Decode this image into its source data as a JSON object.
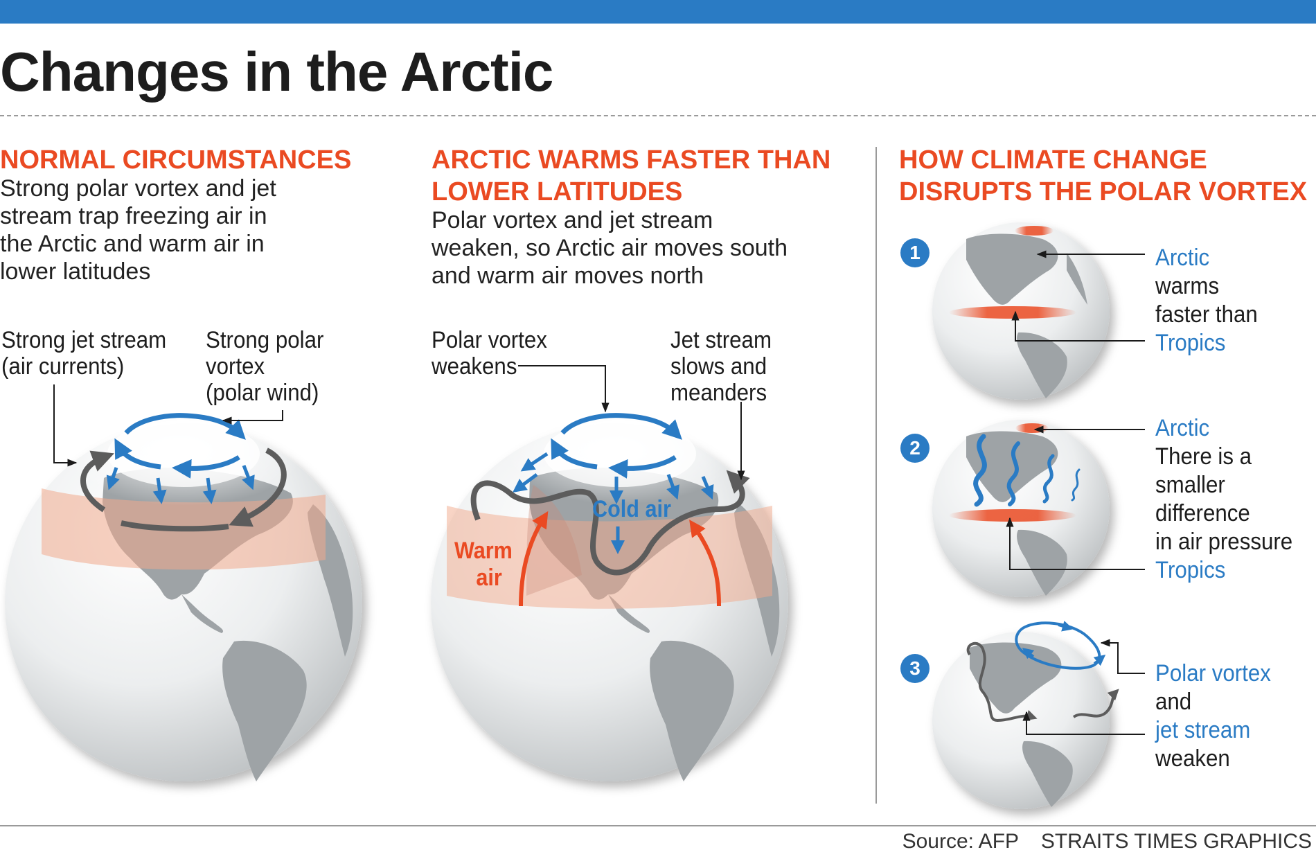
{
  "title": "Changes in the Arctic",
  "panel1": {
    "heading": "NORMAL CIRCUMSTANCES",
    "body": [
      "Strong polar vortex and jet",
      "stream trap freezing air in",
      "the Arctic and warm air in",
      "lower latitudes"
    ],
    "label_jet": [
      "Strong jet stream",
      "(air currents)"
    ],
    "label_vortex": [
      "Strong polar",
      "vortex",
      "(polar wind)"
    ]
  },
  "panel2": {
    "heading": [
      "ARCTIC WARMS FASTER THAN",
      "LOWER LATITUDES"
    ],
    "body": [
      "Polar vortex and jet stream",
      "weaken, so Arctic air moves south",
      "and warm air moves north"
    ],
    "label_vortex": [
      "Polar vortex",
      "weakens"
    ],
    "label_jet": [
      "Jet stream",
      "slows and",
      "meanders"
    ],
    "cold_air": "Cold air",
    "warm_air": [
      "Warm",
      "air"
    ]
  },
  "panel3": {
    "heading": [
      "HOW CLIMATE CHANGE",
      "DISRUPTS THE POLAR VORTEX"
    ],
    "step1": {
      "number": "1",
      "lines": [
        "Arctic",
        "warms",
        "faster than",
        "Tropics"
      ]
    },
    "step2": {
      "number": "2",
      "lines": [
        "Arctic",
        "There is a",
        "smaller",
        "difference",
        "in air pressure",
        "Tropics"
      ]
    },
    "step3": {
      "number": "3",
      "lines": [
        "Polar vortex",
        "and",
        "jet stream",
        "weaken"
      ]
    }
  },
  "footer": {
    "source": "Source: AFP",
    "credit": "STRAITS TIMES GRAPHICS"
  },
  "colors": {
    "accent_blue": "#2a7bc4",
    "accent_red": "#ea4a22",
    "land": "#9ea3a6",
    "arrow_dark": "#5c5c5c"
  }
}
